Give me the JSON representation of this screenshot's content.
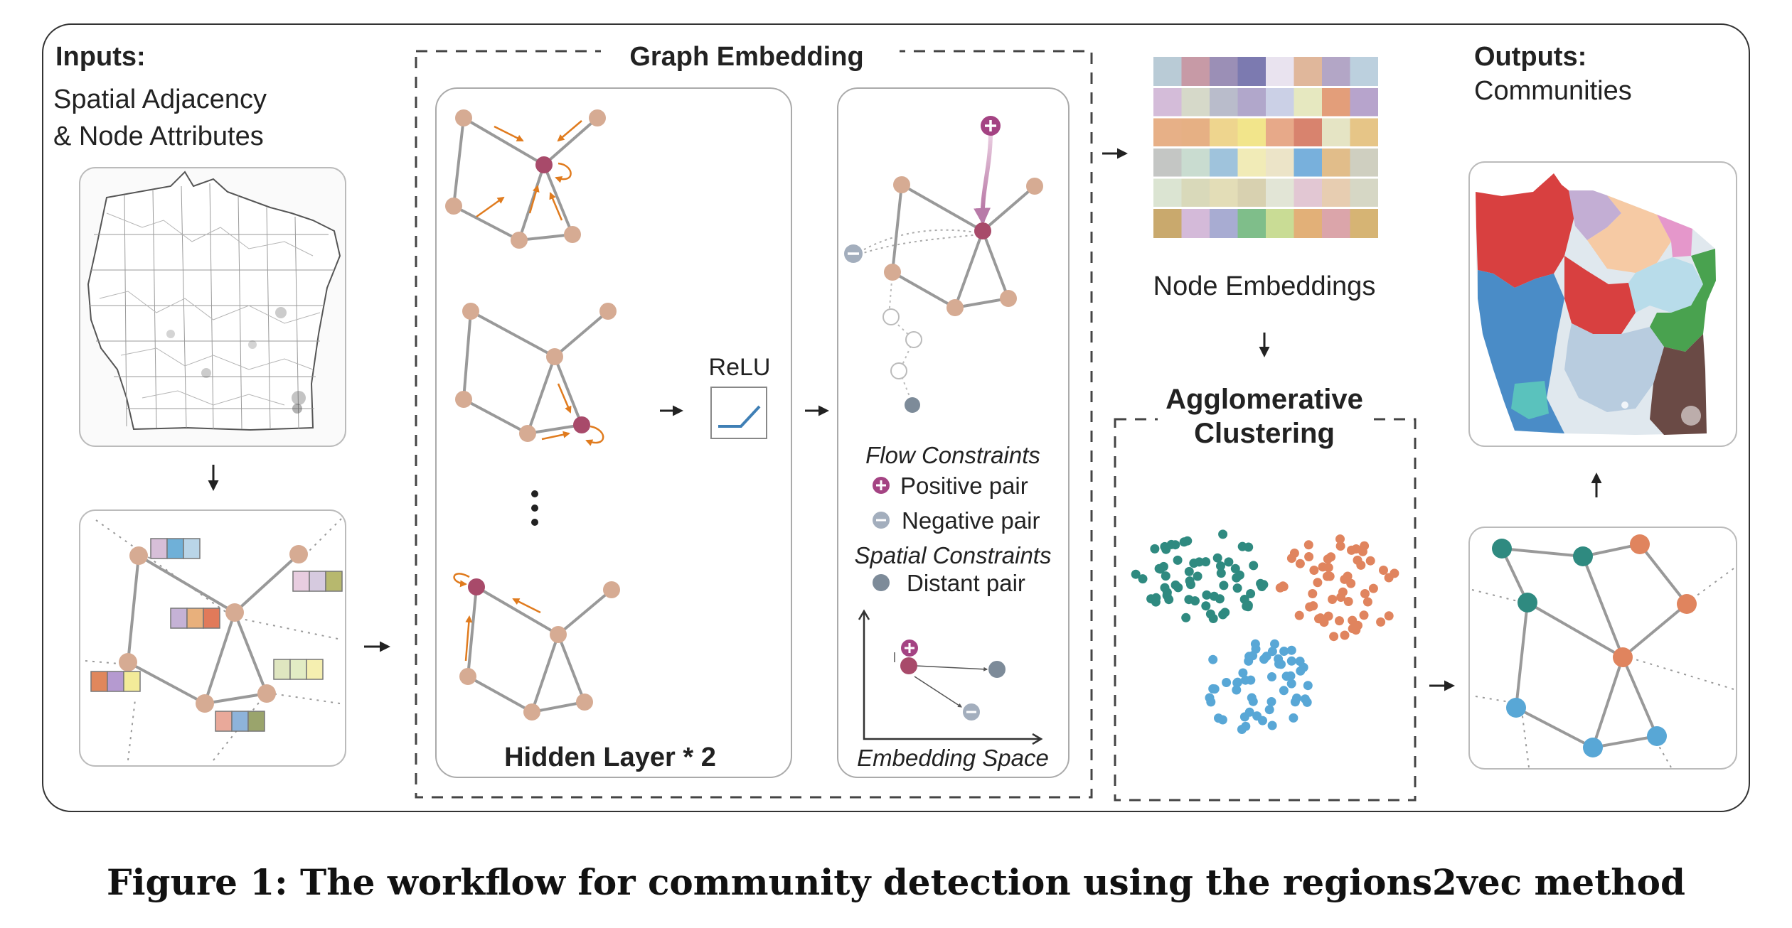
{
  "inputs": {
    "title": "Inputs:",
    "line1": "Spatial Adjacency",
    "line2": "& Node Attributes"
  },
  "graph_embedding": {
    "title": "Graph Embedding",
    "relu_label": "ReLU",
    "hidden_layer_label": "Hidden Layer * 2",
    "flow_constraints_label": "Flow Constraints",
    "positive_pair_label": "Positive pair",
    "negative_pair_label": "Negative pair",
    "spatial_constraints_label": "Spatial Constraints",
    "distant_pair_label": "Distant pair",
    "embedding_space_label": "Embedding Space"
  },
  "node_embeddings_label": "Node Embeddings",
  "clustering": {
    "title_line1": "Agglomerative",
    "title_line2": "Clustering"
  },
  "outputs": {
    "title": "Outputs:",
    "subtitle": "Communities"
  },
  "caption": "Figure 1: The workflow for community detection using the regions2vec method",
  "colors": {
    "node_tan": "#d6ab93",
    "node_focus": "#a84a6a",
    "arrow_orange": "#e07b1e",
    "edge_gray": "#9a9a9a",
    "teal": "#2f8a80",
    "salmon": "#e0845e",
    "blue": "#58a7d6",
    "positive": "#a44383",
    "negative": "#a3aebd",
    "distant": "#7d8b99"
  },
  "embedding_matrix": [
    [
      "#b9cbd6",
      "#c79aa6",
      "#9b8fb6",
      "#7c7ab0",
      "#e9e3ef",
      "#e0b79b",
      "#b3a6c6",
      "#bcd0de"
    ],
    [
      "#d4bcd9",
      "#d6d9c9",
      "#b9bccb",
      "#b1a7cb",
      "#cbd0e6",
      "#e6e8c0",
      "#e39e7a",
      "#b7a4cc"
    ],
    [
      "#e7b087",
      "#e6b084",
      "#eed58e",
      "#f2e58b",
      "#e7a989",
      "#d8836e",
      "#e5e4c4",
      "#e6c587"
    ],
    [
      "#c4c6c4",
      "#c9dcd0",
      "#9fc3dc",
      "#f1ebb7",
      "#ece4c8",
      "#78b0dc",
      "#e1bd8a",
      "#cfcfc0"
    ],
    [
      "#dbe4d2",
      "#d9d9ba",
      "#e3ddb7",
      "#d8d1b0",
      "#e2e5d6",
      "#e2c7d3",
      "#e7cdb1",
      "#d6d7c5"
    ],
    [
      "#c9a96d",
      "#d4bad9",
      "#a8acd2",
      "#7fbe8a",
      "#c9dc95",
      "#e2b078",
      "#dba5aa",
      "#d6b474"
    ]
  ]
}
